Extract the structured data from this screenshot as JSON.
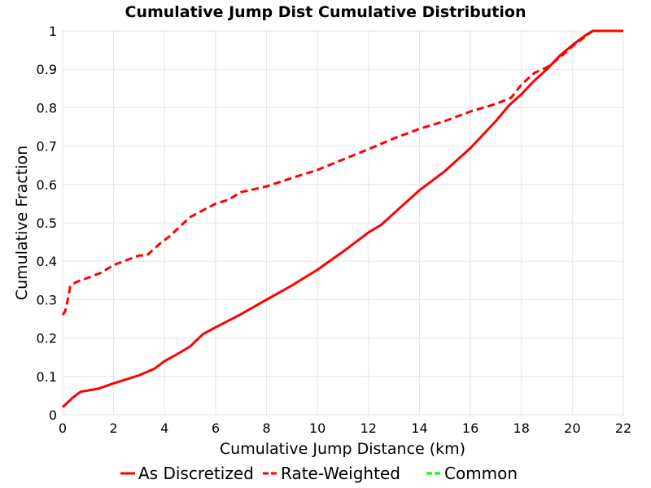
{
  "chart_data": {
    "type": "line",
    "title": "Cumulative Jump Dist Cumulative Distribution",
    "xlabel": "Cumulative Jump Distance (km)",
    "ylabel": "Cumulative Fraction",
    "xlim": [
      0,
      22
    ],
    "ylim": [
      0,
      1
    ],
    "x_ticks": [
      "0",
      "2",
      "4",
      "6",
      "8",
      "10",
      "12",
      "14",
      "16",
      "18",
      "20",
      "22"
    ],
    "y_ticks": [
      "0",
      "0.1",
      "0.2",
      "0.3",
      "0.4",
      "0.5",
      "0.6",
      "0.7",
      "0.8",
      "0.9",
      "1"
    ],
    "grid": true,
    "legend_position": "bottom",
    "series": [
      {
        "name": "As Discretized",
        "style": "solid",
        "color": "#ff0000",
        "x": [
          0.0,
          0.4,
          0.7,
          1.4,
          2.0,
          3.0,
          3.6,
          4.0,
          4.5,
          5.0,
          5.5,
          6.0,
          7.0,
          8.0,
          9.0,
          10.0,
          11.0,
          12.0,
          12.5,
          13.0,
          14.0,
          15.0,
          16.0,
          16.5,
          17.0,
          17.5,
          18.0,
          18.5,
          19.0,
          19.5,
          20.0,
          20.5,
          20.8,
          22.0
        ],
        "y": [
          0.02,
          0.045,
          0.06,
          0.068,
          0.082,
          0.103,
          0.12,
          0.14,
          0.158,
          0.178,
          0.21,
          0.228,
          0.262,
          0.3,
          0.337,
          0.378,
          0.425,
          0.475,
          0.495,
          0.525,
          0.585,
          0.635,
          0.695,
          0.73,
          0.765,
          0.805,
          0.835,
          0.87,
          0.9,
          0.935,
          0.963,
          0.988,
          1.0,
          1.0
        ]
      },
      {
        "name": "Rate-Weighted",
        "style": "dashed",
        "color": "#ff0000",
        "x": [
          0.0,
          0.1,
          0.2,
          0.3,
          0.5,
          1.0,
          1.5,
          2.0,
          3.0,
          3.3,
          3.8,
          4.2,
          5.0,
          6.0,
          6.5,
          7.0,
          8.0,
          9.0,
          10.0,
          11.0,
          12.0,
          13.0,
          14.0,
          15.0,
          16.0,
          17.0,
          17.6,
          18.0,
          18.5,
          19.0,
          19.5,
          20.0,
          20.5,
          20.8,
          22.0
        ],
        "y": [
          0.26,
          0.27,
          0.3,
          0.335,
          0.345,
          0.357,
          0.37,
          0.39,
          0.415,
          0.415,
          0.445,
          0.465,
          0.515,
          0.55,
          0.56,
          0.58,
          0.595,
          0.617,
          0.638,
          0.665,
          0.692,
          0.72,
          0.745,
          0.765,
          0.79,
          0.81,
          0.826,
          0.86,
          0.89,
          0.905,
          0.93,
          0.96,
          0.985,
          1.0,
          1.0
        ]
      },
      {
        "name": "Common",
        "style": "dashed",
        "color": "#00ff00",
        "x": [],
        "y": []
      }
    ]
  }
}
